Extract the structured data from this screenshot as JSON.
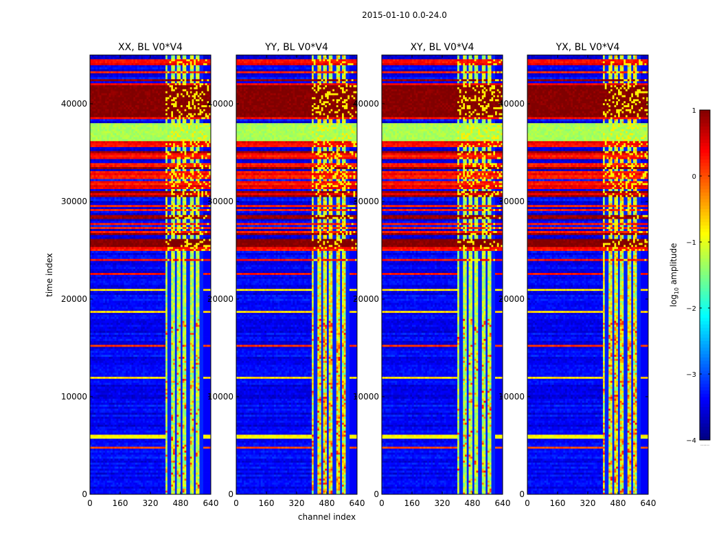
{
  "chart_data": {
    "type": "heatmap",
    "suptitle": "2015-01-10 0.0-24.0",
    "xlabel": "channel index",
    "ylabel": "time index",
    "xlim": [
      0,
      640
    ],
    "ylim": [
      0,
      45000
    ],
    "xticks": [
      0,
      160,
      320,
      480,
      640
    ],
    "yticks": [
      0,
      10000,
      20000,
      30000,
      40000
    ],
    "panels": [
      {
        "title": "XX, BL V0*V4",
        "variant": "XX"
      },
      {
        "title": "YY, BL V0*V4",
        "variant": "YY"
      },
      {
        "title": "XY, BL V0*V4",
        "variant": "XY"
      },
      {
        "title": "YX, BL V0*V4",
        "variant": "YX"
      }
    ],
    "colorbar": {
      "label": "log10 amplitude",
      "label_main": "log",
      "label_sub": "10",
      "label_rest": " amplitude",
      "ticks": [
        1,
        0,
        -1,
        -2,
        -3,
        -4
      ],
      "vmin": -4,
      "vmax": 1,
      "colormap": "jet",
      "extra_label": "......"
    },
    "band_structure": {
      "hot_channel_range": [
        400,
        600
      ],
      "stripe_channels": [
        420,
        455,
        485,
        520,
        555,
        590
      ],
      "blank_channel_range": [
        600,
        640
      ],
      "saturated_time_rows": [
        {
          "from": 24000,
          "to": 45000,
          "level": 0.3
        },
        {
          "from": 38700,
          "to": 42000,
          "level": 1.0
        },
        {
          "from": 36300,
          "to": 38000,
          "level": -1.3
        },
        {
          "from": 25400,
          "to": 26200,
          "level": 1.0
        },
        {
          "from": 28500,
          "to": 29500,
          "level": 0.3
        }
      ],
      "background_level": -3.4
    }
  }
}
